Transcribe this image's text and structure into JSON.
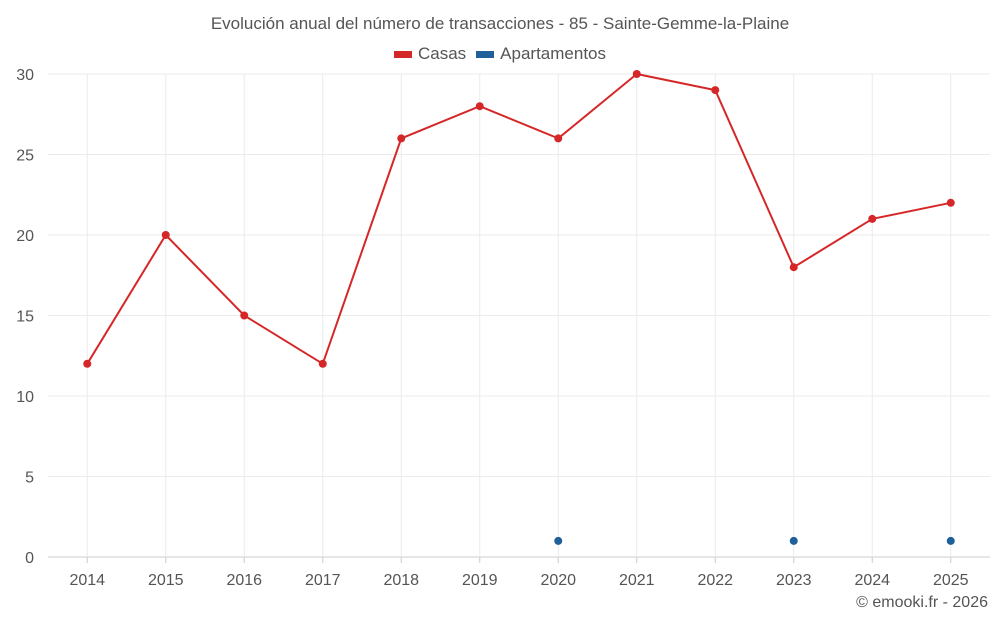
{
  "chart_data": {
    "type": "line",
    "title": "Evolución anual del número de transacciones - 85 - Sainte-Gemme-la-Plaine",
    "xlabel": "",
    "ylabel": "",
    "categories": [
      "2014",
      "2015",
      "2016",
      "2017",
      "2018",
      "2019",
      "2020",
      "2021",
      "2022",
      "2023",
      "2024",
      "2025"
    ],
    "ylim": [
      0,
      30
    ],
    "yticks": [
      0,
      5,
      10,
      15,
      20,
      25,
      30
    ],
    "grid": true,
    "legend_position": "top-center",
    "series": [
      {
        "name": "Casas",
        "color": "#d62728",
        "values": [
          12,
          20,
          15,
          12,
          26,
          28,
          26,
          30,
          29,
          18,
          21,
          22
        ]
      },
      {
        "name": "Apartamentos",
        "color": "#1f5f9a",
        "values": [
          null,
          null,
          null,
          null,
          null,
          null,
          1,
          null,
          null,
          1,
          null,
          1
        ]
      }
    ]
  },
  "footer": {
    "copyright": "© emooki.fr - 2026"
  }
}
